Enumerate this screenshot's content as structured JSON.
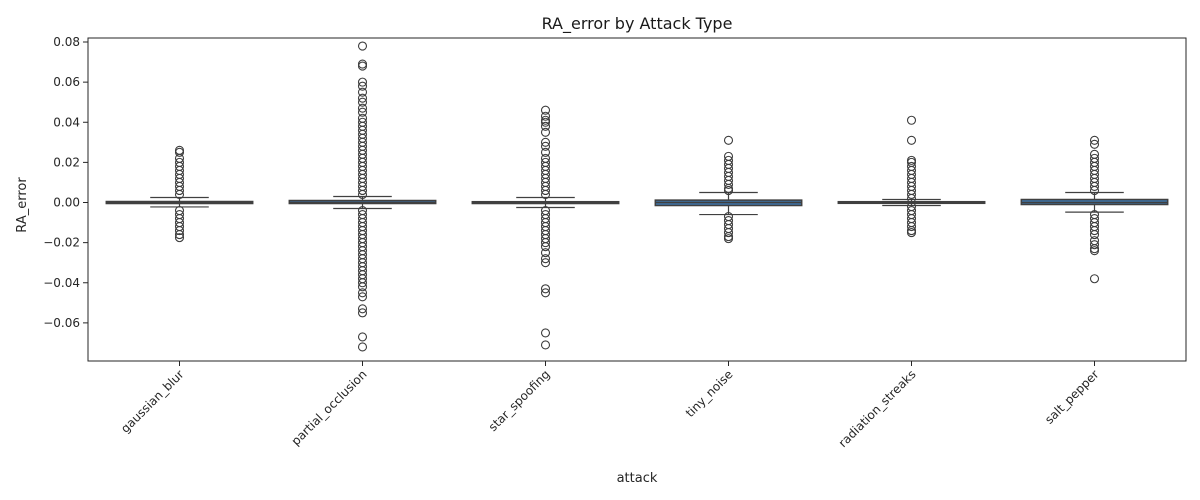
{
  "chart_data": {
    "type": "box",
    "title": "RA_error by Attack Type",
    "xlabel": "attack",
    "ylabel": "RA_error",
    "ylim": [
      -0.079,
      0.082
    ],
    "yticks": [
      -0.06,
      -0.04,
      -0.02,
      0.0,
      0.02,
      0.04,
      0.06,
      0.08
    ],
    "ytick_labels": [
      "−0.06",
      "−0.04",
      "−0.02",
      "0.00",
      "0.02",
      "0.04",
      "0.06",
      "0.08"
    ],
    "grid": false,
    "box_color": "#3e72a6",
    "edge_color": "#404040",
    "categories": [
      "gaussian_blur",
      "partial_occlusion",
      "star_spoofing",
      "tiny_noise",
      "radiation_streaks",
      "salt_pepper"
    ],
    "series": [
      {
        "category": "gaussian_blur",
        "q1": -0.0005,
        "median": 0.0,
        "q3": 0.0005,
        "whisker_low": -0.0022,
        "whisker_high": 0.0025,
        "outliers": [
          0.026,
          0.025,
          0.022,
          0.02,
          0.018,
          0.016,
          0.014,
          0.012,
          0.01,
          0.008,
          0.006,
          0.004,
          -0.004,
          -0.006,
          -0.008,
          -0.01,
          -0.012,
          -0.014,
          -0.016,
          -0.0175
        ]
      },
      {
        "category": "partial_occlusion",
        "q1": -0.0005,
        "median": 0.0,
        "q3": 0.001,
        "whisker_low": -0.003,
        "whisker_high": 0.003,
        "outliers": [
          0.078,
          0.069,
          0.068,
          0.06,
          0.058,
          0.055,
          0.052,
          0.05,
          0.047,
          0.045,
          0.042,
          0.04,
          0.038,
          0.036,
          0.034,
          0.032,
          0.03,
          0.028,
          0.026,
          0.024,
          0.022,
          0.02,
          0.018,
          0.016,
          0.014,
          0.012,
          0.01,
          0.008,
          0.006,
          0.004,
          -0.004,
          -0.006,
          -0.008,
          -0.01,
          -0.012,
          -0.014,
          -0.016,
          -0.018,
          -0.02,
          -0.022,
          -0.024,
          -0.026,
          -0.028,
          -0.03,
          -0.032,
          -0.034,
          -0.036,
          -0.038,
          -0.04,
          -0.042,
          -0.045,
          -0.047,
          -0.053,
          -0.055,
          -0.067,
          -0.072
        ]
      },
      {
        "category": "star_spoofing",
        "q1": -0.0005,
        "median": 0.0,
        "q3": 0.0004,
        "whisker_low": -0.0025,
        "whisker_high": 0.0025,
        "outliers": [
          0.046,
          0.043,
          0.041,
          0.04,
          0.038,
          0.035,
          0.03,
          0.028,
          0.025,
          0.022,
          0.02,
          0.018,
          0.016,
          0.014,
          0.012,
          0.01,
          0.008,
          0.006,
          0.004,
          -0.004,
          -0.006,
          -0.008,
          -0.01,
          -0.012,
          -0.014,
          -0.016,
          -0.018,
          -0.02,
          -0.022,
          -0.025,
          -0.028,
          -0.03,
          -0.043,
          -0.045,
          -0.065,
          -0.071
        ]
      },
      {
        "category": "tiny_noise",
        "q1": -0.0015,
        "median": 0.0,
        "q3": 0.0012,
        "whisker_low": -0.006,
        "whisker_high": 0.005,
        "outliers": [
          0.031,
          0.023,
          0.021,
          0.019,
          0.017,
          0.015,
          0.013,
          0.011,
          0.009,
          0.007,
          0.006,
          -0.007,
          -0.009,
          -0.011,
          -0.013,
          -0.015,
          -0.017,
          -0.018
        ]
      },
      {
        "category": "radiation_streaks",
        "q1": -0.0004,
        "median": 0.0,
        "q3": 0.0004,
        "whisker_low": -0.0015,
        "whisker_high": 0.0015,
        "outliers": [
          0.041,
          0.031,
          0.021,
          0.02,
          0.018,
          0.016,
          0.014,
          0.012,
          0.01,
          0.008,
          0.006,
          0.004,
          0.002,
          -0.002,
          -0.004,
          -0.006,
          -0.008,
          -0.01,
          -0.012,
          -0.014,
          -0.015
        ]
      },
      {
        "category": "salt_pepper",
        "q1": -0.001,
        "median": 0.0,
        "q3": 0.0015,
        "whisker_low": -0.0048,
        "whisker_high": 0.005,
        "outliers": [
          0.031,
          0.029,
          0.024,
          0.022,
          0.02,
          0.018,
          0.016,
          0.014,
          0.012,
          0.01,
          0.008,
          0.006,
          -0.006,
          -0.008,
          -0.01,
          -0.012,
          -0.014,
          -0.016,
          -0.019,
          -0.021,
          -0.023,
          -0.024,
          -0.038
        ]
      }
    ]
  }
}
